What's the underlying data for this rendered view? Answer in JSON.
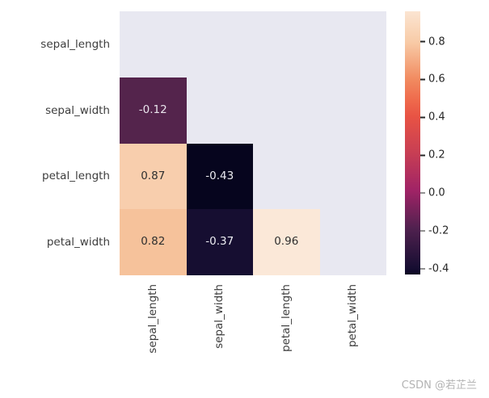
{
  "watermark": {
    "text": "CSDN @若芷兰",
    "color": "#b3b3b3"
  },
  "chart_data": {
    "type": "heatmap",
    "title": "",
    "description": "Lower-triangle correlation matrix heatmap of iris features with rocket colormap",
    "variables": [
      "sepal_length",
      "sepal_width",
      "petal_length",
      "petal_width"
    ],
    "x_tick_labels": [
      "sepal_length",
      "sepal_width",
      "petal_length",
      "petal_width"
    ],
    "y_tick_labels": [
      "sepal_length",
      "sepal_width",
      "petal_length",
      "petal_width"
    ],
    "matrix": [
      [
        null,
        null,
        null,
        null
      ],
      [
        -0.12,
        null,
        null,
        null
      ],
      [
        0.87,
        -0.43,
        null,
        null
      ],
      [
        0.82,
        -0.37,
        0.96,
        null
      ]
    ],
    "cell_styles": [
      {
        "row": 1,
        "col": 0,
        "label": "-0.12",
        "bg": "#54244C",
        "fg": "#E9E4EC"
      },
      {
        "row": 2,
        "col": 0,
        "label": "0.87",
        "bg": "#F8CEAD",
        "fg": "#2f2f2f"
      },
      {
        "row": 2,
        "col": 1,
        "label": "-0.43",
        "bg": "#06051E",
        "fg": "#ECECF2"
      },
      {
        "row": 3,
        "col": 0,
        "label": "0.82",
        "bg": "#F6C29B",
        "fg": "#2f2f2f"
      },
      {
        "row": 3,
        "col": 1,
        "label": "-0.37",
        "bg": "#160E31",
        "fg": "#ECECF2"
      },
      {
        "row": 3,
        "col": 2,
        "label": "0.96",
        "bg": "#FBE8D8",
        "fg": "#2f2f2f"
      }
    ],
    "masked_color": "#E8E8F1",
    "grid": false,
    "legend_position": "right-colorbar",
    "colorbar": {
      "vmin": -0.43,
      "vmax": 0.96,
      "ticks": [
        {
          "label": "0.8",
          "value": 0.8
        },
        {
          "label": "0.6",
          "value": 0.6
        },
        {
          "label": "0.4",
          "value": 0.4
        },
        {
          "label": "0.2",
          "value": 0.2
        },
        {
          "label": "0.0",
          "value": 0.0
        },
        {
          "label": "-0.2",
          "value": -0.2
        },
        {
          "label": "-0.4",
          "value": -0.4
        }
      ],
      "gradient": [
        {
          "pos": 0.0,
          "color": "#FBE5D2"
        },
        {
          "pos": 0.117,
          "color": "#F8CBA7"
        },
        {
          "pos": 0.258,
          "color": "#F18B60"
        },
        {
          "pos": 0.337,
          "color": "#EF6A4C"
        },
        {
          "pos": 0.399,
          "color": "#E85344"
        },
        {
          "pos": 0.54,
          "color": "#C73E54"
        },
        {
          "pos": 0.681,
          "color": "#A02366"
        },
        {
          "pos": 0.825,
          "color": "#50214F"
        },
        {
          "pos": 0.979,
          "color": "#150D31"
        },
        {
          "pos": 1.0,
          "color": "#0A0622"
        }
      ]
    }
  }
}
